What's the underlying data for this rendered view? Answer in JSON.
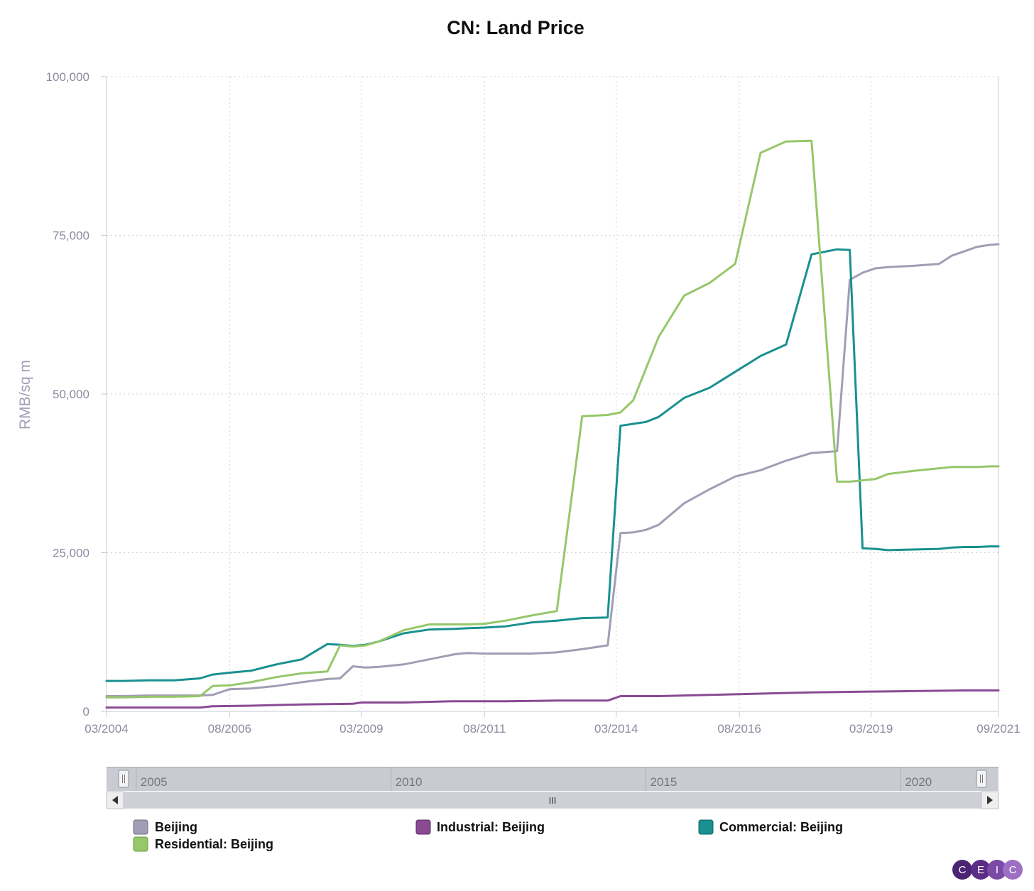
{
  "chart_data": {
    "type": "line",
    "title": "CN: Land Price",
    "ylabel": "RMB/sq m",
    "xlabel": "",
    "ylim": [
      0,
      100000
    ],
    "yticks": [
      0,
      25000,
      50000,
      75000,
      100000
    ],
    "ytick_labels": [
      "0",
      "25,000",
      "50,000",
      "75,000",
      "100,000"
    ],
    "xlim": [
      2004.167,
      2021.667
    ],
    "xticks": [
      2004.167,
      2006.583,
      2009.167,
      2011.583,
      2014.167,
      2016.583,
      2019.167,
      2021.667
    ],
    "xtick_labels": [
      "03/2004",
      "08/2006",
      "03/2009",
      "08/2011",
      "03/2014",
      "08/2016",
      "03/2019",
      "09/2021"
    ],
    "grid": true,
    "legend_position": "bottom",
    "series": [
      {
        "name": "Beijing",
        "color": "#a09eb4",
        "x": [
          2004.167,
          2004.5,
          2005.0,
          2005.5,
          2006.0,
          2006.25,
          2006.583,
          2007.0,
          2007.5,
          2008.0,
          2008.5,
          2008.75,
          2009.0,
          2009.25,
          2009.5,
          2010.0,
          2010.5,
          2011.0,
          2011.25,
          2011.583,
          2012.0,
          2012.5,
          2013.0,
          2013.5,
          2014.0,
          2014.25,
          2014.5,
          2014.75,
          2015.0,
          2015.5,
          2016.0,
          2016.5,
          2017.0,
          2017.5,
          2018.0,
          2018.5,
          2018.75,
          2019.0,
          2019.25,
          2019.5,
          2020.0,
          2020.5,
          2020.75,
          2021.0,
          2021.25,
          2021.5,
          2021.667
        ],
        "values": [
          2400,
          2400,
          2500,
          2500,
          2500,
          2600,
          3500,
          3600,
          4000,
          4600,
          5100,
          5200,
          7100,
          6900,
          7000,
          7400,
          8200,
          9000,
          9200,
          9100,
          9100,
          9100,
          9300,
          9800,
          10400,
          28100,
          28200,
          28600,
          29400,
          32800,
          35000,
          37000,
          38000,
          39500,
          40700,
          41000,
          68000,
          69100,
          69800,
          70000,
          70200,
          70500,
          71800,
          72500,
          73200,
          73500,
          73600
        ]
      },
      {
        "name": "Industrial: Beijing",
        "color": "#8a4a94",
        "x": [
          2004.167,
          2005.0,
          2006.0,
          2006.25,
          2007.0,
          2008.0,
          2009.0,
          2009.167,
          2010.0,
          2011.0,
          2012.0,
          2013.0,
          2014.0,
          2014.25,
          2015.0,
          2016.0,
          2017.0,
          2018.0,
          2019.0,
          2020.0,
          2021.0,
          2021.667
        ],
        "values": [
          600,
          600,
          600,
          800,
          900,
          1100,
          1200,
          1400,
          1400,
          1600,
          1600,
          1700,
          1700,
          2400,
          2400,
          2600,
          2800,
          3000,
          3100,
          3200,
          3300,
          3300
        ]
      },
      {
        "name": "Commercial: Beijing",
        "color": "#1a9090",
        "x": [
          2004.167,
          2004.5,
          2005.0,
          2005.5,
          2006.0,
          2006.25,
          2006.583,
          2007.0,
          2007.5,
          2008.0,
          2008.5,
          2008.75,
          2009.0,
          2009.25,
          2009.5,
          2010.0,
          2010.5,
          2011.0,
          2011.25,
          2011.583,
          2012.0,
          2012.5,
          2013.0,
          2013.5,
          2014.0,
          2014.25,
          2014.5,
          2014.75,
          2015.0,
          2015.5,
          2016.0,
          2016.5,
          2017.0,
          2017.5,
          2018.0,
          2018.5,
          2018.75,
          2019.0,
          2019.25,
          2019.5,
          2020.0,
          2020.5,
          2020.75,
          2021.0,
          2021.25,
          2021.5,
          2021.667
        ],
        "values": [
          4800,
          4800,
          4900,
          4900,
          5200,
          5800,
          6100,
          6400,
          7400,
          8200,
          10600,
          10500,
          10300,
          10500,
          11000,
          12300,
          12900,
          13000,
          13100,
          13200,
          13400,
          14000,
          14300,
          14700,
          14800,
          45000,
          45300,
          45600,
          46400,
          49400,
          51000,
          53500,
          56000,
          57800,
          72000,
          72800,
          72700,
          25700,
          25600,
          25400,
          25500,
          25600,
          25800,
          25900,
          25900,
          26000,
          26000
        ]
      },
      {
        "name": "Residential: Beijing",
        "color": "#96c76a",
        "x": [
          2004.167,
          2004.5,
          2005.0,
          2005.5,
          2006.0,
          2006.25,
          2006.583,
          2007.0,
          2007.5,
          2008.0,
          2008.5,
          2008.75,
          2009.0,
          2009.25,
          2009.5,
          2010.0,
          2010.5,
          2011.0,
          2011.25,
          2011.583,
          2012.0,
          2012.5,
          2013.0,
          2013.5,
          2014.0,
          2014.25,
          2014.5,
          2014.75,
          2015.0,
          2015.5,
          2016.0,
          2016.5,
          2017.0,
          2017.5,
          2018.0,
          2018.5,
          2018.75,
          2019.0,
          2019.25,
          2019.5,
          2020.0,
          2020.5,
          2020.75,
          2021.0,
          2021.25,
          2021.5,
          2021.667
        ],
        "values": [
          2200,
          2200,
          2300,
          2300,
          2400,
          4000,
          4100,
          4600,
          5400,
          6000,
          6300,
          10400,
          10200,
          10400,
          11000,
          12800,
          13700,
          13700,
          13700,
          13800,
          14300,
          15100,
          15800,
          46500,
          46700,
          47100,
          49000,
          54000,
          59000,
          65500,
          67500,
          70500,
          88000,
          89800,
          89900,
          36200,
          36200,
          36400,
          36600,
          37400,
          37900,
          38300,
          38500,
          38500,
          38500,
          38600,
          38600
        ]
      }
    ],
    "navigator": {
      "labels": [
        "2005",
        "2010",
        "2015",
        "2020"
      ],
      "label_years": [
        2005,
        2010,
        2015,
        2020
      ]
    }
  },
  "brand": {
    "logo_letters": [
      "C",
      "E",
      "I",
      "C"
    ],
    "logo_color": "#5b2d86"
  }
}
